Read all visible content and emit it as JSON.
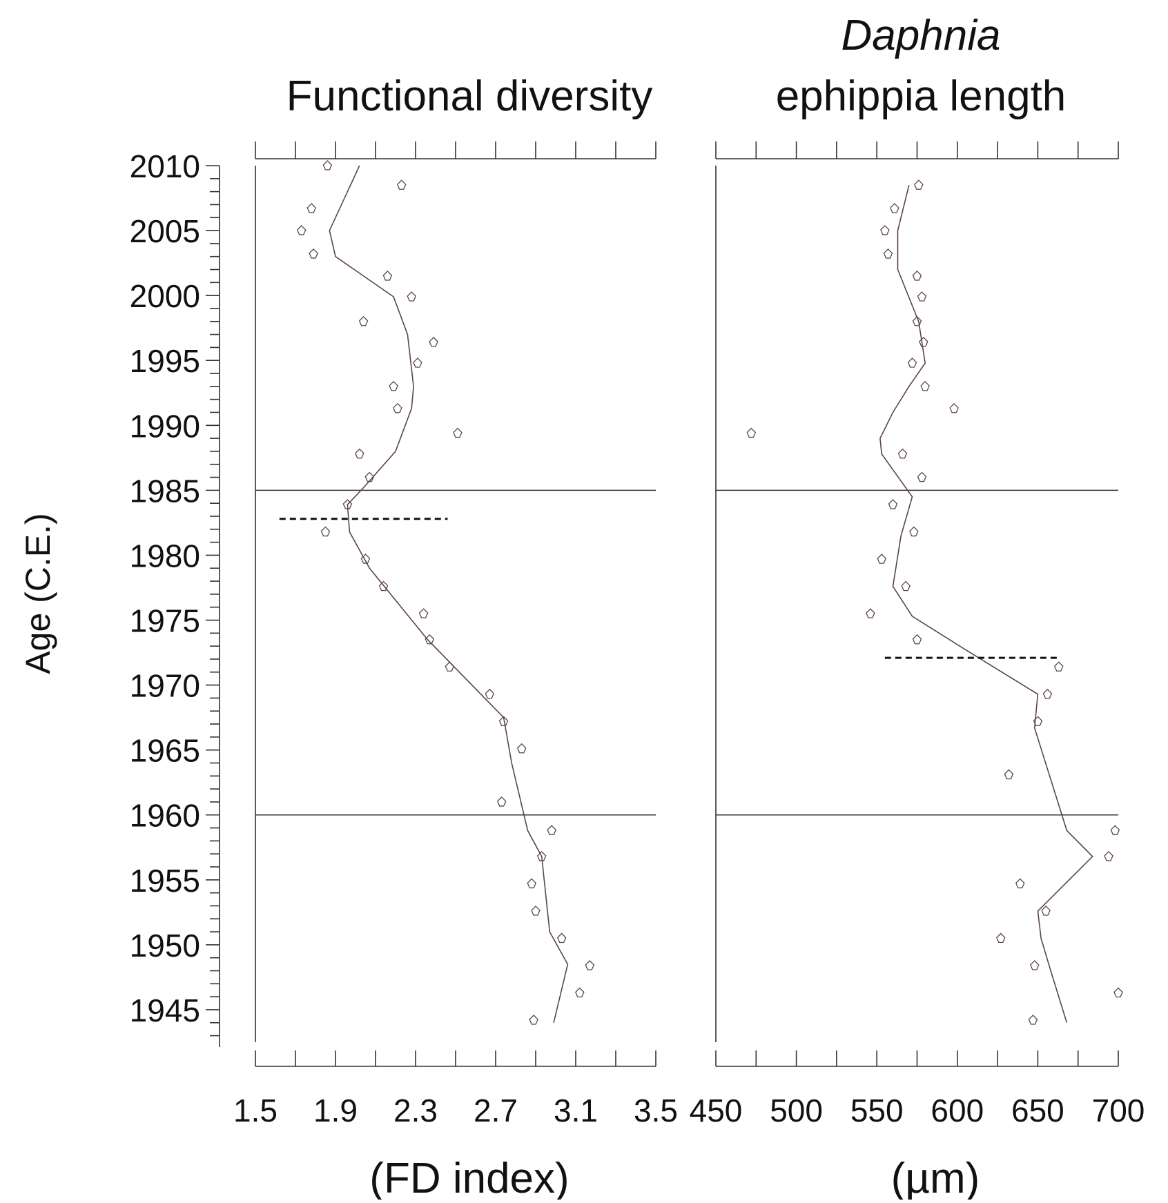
{
  "y_axis": {
    "label": "Age (C.E.)",
    "ticks": [
      2010,
      2005,
      2000,
      1995,
      1990,
      1985,
      1980,
      1975,
      1970,
      1965,
      1960,
      1955,
      1950,
      1945
    ],
    "range": [
      1942.5,
      2010
    ]
  },
  "reference_lines": [
    1985,
    1960
  ],
  "panels": [
    {
      "title_line1": "",
      "title_line2": "Functional diversity",
      "unit": "(FD index)",
      "xlim": [
        1.5,
        3.5
      ],
      "ticks": [
        "1.5",
        "1.9",
        "2.3",
        "2.7",
        "3.1",
        "3.5"
      ]
    },
    {
      "title_line1": "Daphnia",
      "title_line2": "ephippia length",
      "unit": "(µm)",
      "xlim": [
        450,
        700
      ],
      "ticks": [
        "450",
        "500",
        "550",
        "600",
        "650",
        "700"
      ]
    }
  ],
  "chart_data": [
    {
      "type": "scatter",
      "title": "Functional diversity",
      "xlabel": "(FD index)",
      "ylabel": "Age (C.E.)",
      "xlim": [
        1.5,
        3.5
      ],
      "ylim": [
        1942.5,
        2010
      ],
      "points": [
        [
          1.86,
          2010.0
        ],
        [
          2.23,
          2008.5
        ],
        [
          1.78,
          2006.7
        ],
        [
          1.73,
          2005.0
        ],
        [
          1.79,
          2003.2
        ],
        [
          2.16,
          2001.5
        ],
        [
          2.28,
          1999.9
        ],
        [
          2.04,
          1998.0
        ],
        [
          2.39,
          1996.4
        ],
        [
          2.31,
          1994.8
        ],
        [
          2.19,
          1993.0
        ],
        [
          2.21,
          1991.3
        ],
        [
          2.51,
          1989.4
        ],
        [
          2.02,
          1987.8
        ],
        [
          2.07,
          1986.0
        ],
        [
          1.96,
          1983.9
        ],
        [
          1.85,
          1981.8
        ],
        [
          2.05,
          1979.7
        ],
        [
          2.14,
          1977.6
        ],
        [
          2.34,
          1975.5
        ],
        [
          2.37,
          1973.5
        ],
        [
          2.47,
          1971.4
        ],
        [
          2.67,
          1969.3
        ],
        [
          2.74,
          1967.2
        ],
        [
          2.83,
          1965.1
        ],
        [
          2.73,
          1961.0
        ],
        [
          2.98,
          1958.8
        ],
        [
          2.93,
          1956.8
        ],
        [
          2.88,
          1954.7
        ],
        [
          2.9,
          1952.6
        ],
        [
          3.03,
          1950.5
        ],
        [
          3.17,
          1948.4
        ],
        [
          3.12,
          1946.3
        ],
        [
          2.89,
          1944.2
        ]
      ],
      "trend": [
        [
          2.02,
          2010.0
        ],
        [
          1.87,
          2005.0
        ],
        [
          1.9,
          2003.0
        ],
        [
          2.19,
          1999.9
        ],
        [
          2.26,
          1997.0
        ],
        [
          2.29,
          1993.0
        ],
        [
          2.28,
          1991.3
        ],
        [
          2.2,
          1988.0
        ],
        [
          2.04,
          1985.2
        ],
        [
          1.96,
          1983.9
        ],
        [
          1.97,
          1981.8
        ],
        [
          2.07,
          1979.0
        ],
        [
          2.36,
          1973.5
        ],
        [
          2.74,
          1967.5
        ],
        [
          2.78,
          1964.0
        ],
        [
          2.86,
          1958.8
        ],
        [
          2.93,
          1956.8
        ],
        [
          2.97,
          1951.0
        ],
        [
          3.06,
          1948.5
        ],
        [
          2.99,
          1944.0
        ]
      ],
      "change_point": {
        "y": 1982.8,
        "x_range": [
          1.62,
          2.46
        ]
      }
    },
    {
      "type": "scatter",
      "title": "Daphnia ephippia length",
      "xlabel": "(µm)",
      "ylabel": "Age (C.E.)",
      "xlim": [
        450,
        700
      ],
      "ylim": [
        1942.5,
        2010
      ],
      "points": [
        [
          576,
          2008.5
        ],
        [
          561,
          2006.7
        ],
        [
          555,
          2005.0
        ],
        [
          557,
          2003.2
        ],
        [
          575,
          2001.5
        ],
        [
          578,
          1999.9
        ],
        [
          575,
          1998.0
        ],
        [
          579,
          1996.4
        ],
        [
          572,
          1994.8
        ],
        [
          580,
          1993.0
        ],
        [
          598,
          1991.3
        ],
        [
          472,
          1989.4
        ],
        [
          566,
          1987.8
        ],
        [
          578,
          1986.0
        ],
        [
          560,
          1983.9
        ],
        [
          573,
          1981.8
        ],
        [
          553,
          1979.7
        ],
        [
          568,
          1977.6
        ],
        [
          546,
          1975.5
        ],
        [
          575,
          1973.5
        ],
        [
          663,
          1971.4
        ],
        [
          656,
          1969.3
        ],
        [
          650,
          1967.2
        ],
        [
          632,
          1963.1
        ],
        [
          698,
          1958.8
        ],
        [
          694,
          1956.8
        ],
        [
          639,
          1954.7
        ],
        [
          655,
          1952.6
        ],
        [
          627,
          1950.5
        ],
        [
          648,
          1948.4
        ],
        [
          700,
          1946.3
        ],
        [
          647,
          1944.2
        ]
      ],
      "trend": [
        [
          570,
          2008.5
        ],
        [
          563,
          2005.0
        ],
        [
          563,
          2002.0
        ],
        [
          576,
          1998.0
        ],
        [
          580,
          1994.8
        ],
        [
          570,
          1993.0
        ],
        [
          560,
          1991.0
        ],
        [
          552,
          1989.0
        ],
        [
          553,
          1987.8
        ],
        [
          572,
          1984.5
        ],
        [
          565,
          1981.5
        ],
        [
          560,
          1977.6
        ],
        [
          572,
          1975.3
        ],
        [
          608,
          1972.5
        ],
        [
          650,
          1969.3
        ],
        [
          648,
          1966.7
        ],
        [
          668,
          1958.8
        ],
        [
          684,
          1956.8
        ],
        [
          650,
          1952.6
        ],
        [
          652,
          1950.5
        ],
        [
          658,
          1948.0
        ],
        [
          668,
          1944.0
        ]
      ],
      "change_point": {
        "y": 1972.1,
        "x_range": [
          555,
          662
        ]
      }
    }
  ]
}
